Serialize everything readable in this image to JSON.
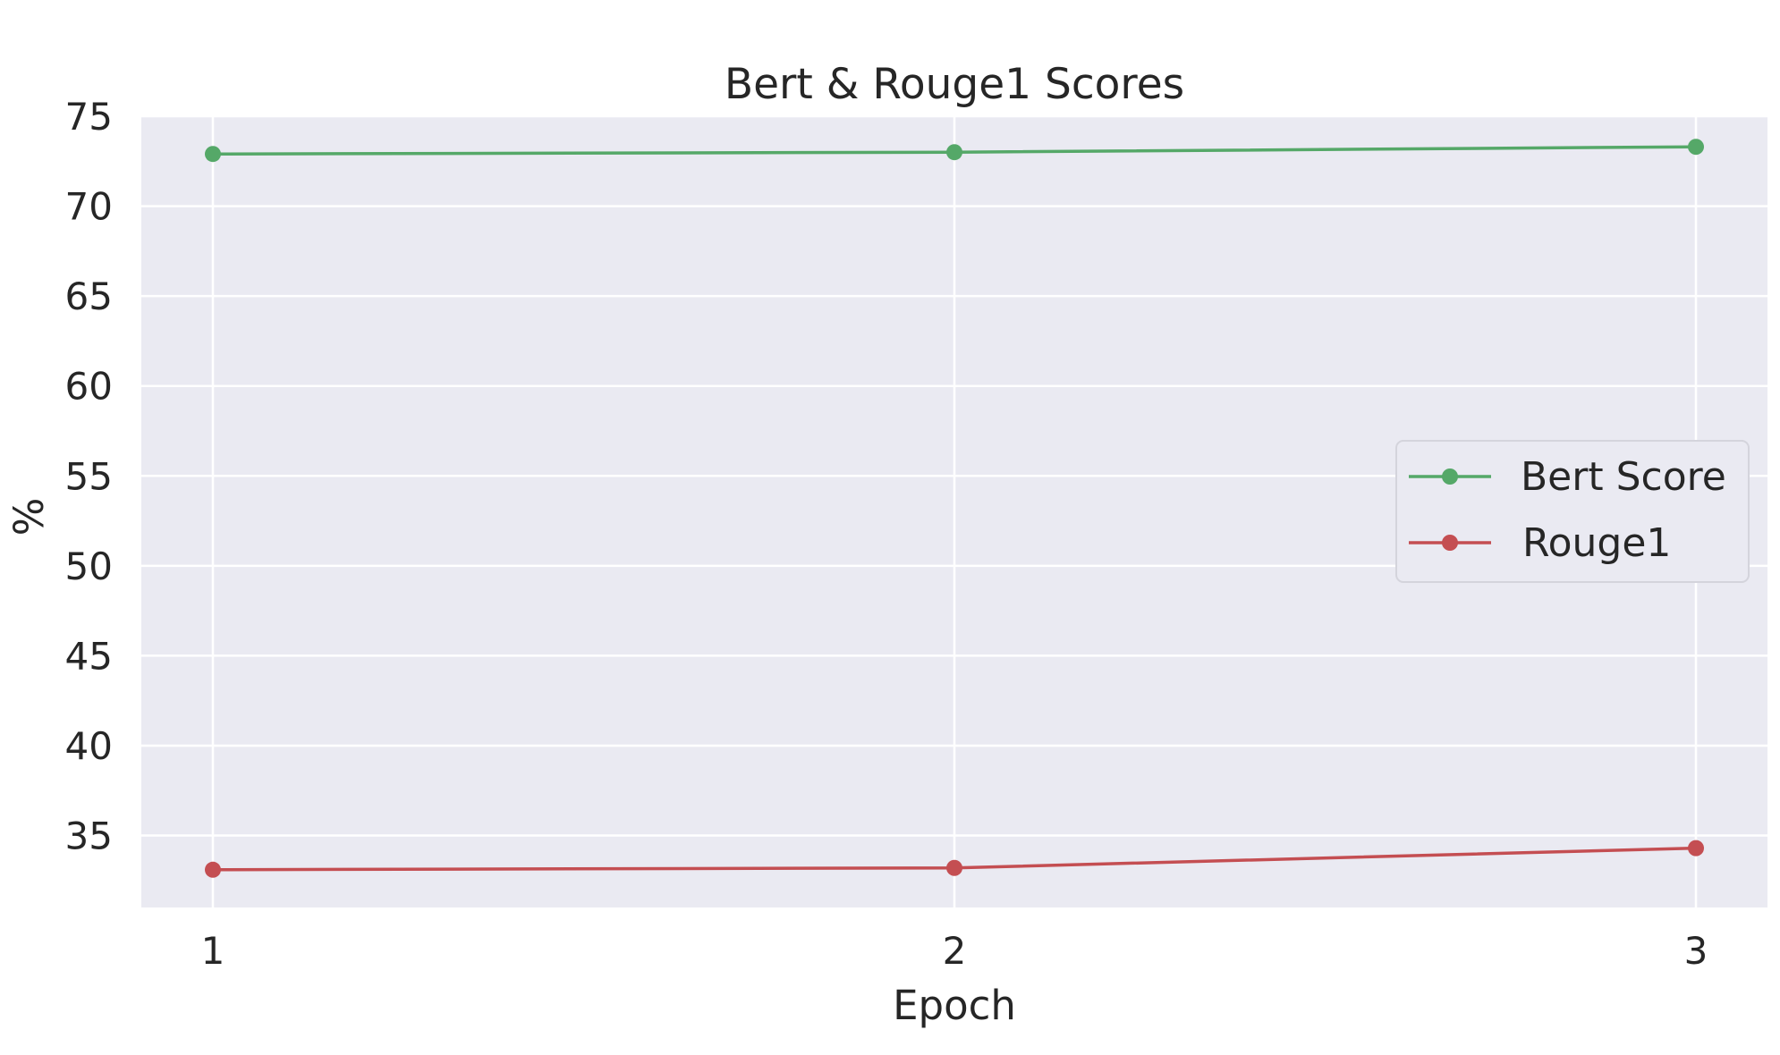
{
  "chart_data": {
    "type": "line",
    "title": "Bert & Rouge1 Scores",
    "xlabel": "Epoch",
    "ylabel": "%",
    "x": [
      1,
      2,
      3
    ],
    "x_tick_labels": [
      "1",
      "2",
      "3"
    ],
    "y_ticks": [
      35,
      40,
      45,
      50,
      55,
      60,
      65,
      70,
      75
    ],
    "y_tick_labels": [
      "35",
      "40",
      "45",
      "50",
      "55",
      "60",
      "65",
      "70",
      "75"
    ],
    "ylim": [
      31.0,
      75.0
    ],
    "grid": true,
    "legend_position": "center-right",
    "series": [
      {
        "name": "Bert Score",
        "values": [
          72.9,
          73.0,
          73.3
        ],
        "color": "#55a868",
        "marker": "circle"
      },
      {
        "name": "Rouge1",
        "values": [
          33.1,
          33.2,
          34.3
        ],
        "color": "#c44e52",
        "marker": "circle"
      }
    ]
  }
}
